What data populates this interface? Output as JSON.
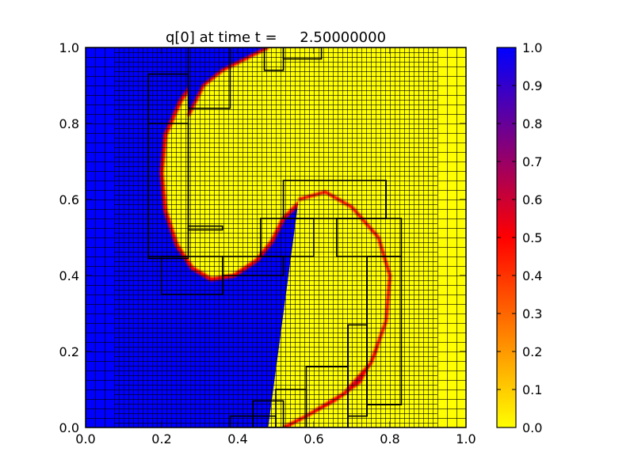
{
  "chart_data": {
    "type": "heatmap",
    "title": "q[0] at time t =     2.50000000",
    "variable": "q[0]",
    "time": 2.5,
    "xlabel": "",
    "ylabel": "",
    "xlim": [
      0.0,
      1.0
    ],
    "ylim": [
      0.0,
      1.0
    ],
    "x_ticks": [
      "0.0",
      "0.2",
      "0.4",
      "0.6",
      "0.8",
      "1.0"
    ],
    "y_ticks": [
      "0.0",
      "0.2",
      "0.4",
      "0.6",
      "0.8",
      "1.0"
    ],
    "colorbar": {
      "range": [
        0.0,
        1.0
      ],
      "ticks": [
        "0.0",
        "0.1",
        "0.2",
        "0.3",
        "0.4",
        "0.5",
        "0.6",
        "0.7",
        "0.8",
        "0.9",
        "1.0"
      ],
      "colormap": [
        "#ffff00",
        "#ff0000",
        "#0000ff"
      ]
    },
    "colors": {
      "high": "#0000ff",
      "low": "#ffff00",
      "interface": "#ff0000",
      "grid": "#000000"
    },
    "field_description": "Swirling interface between q=1 (blue, left/center) and q=0 (yellow, right) on an adaptive mesh",
    "interface_curve": [
      [
        0.52,
        0.0
      ],
      [
        0.57,
        0.03
      ],
      [
        0.65,
        0.07
      ],
      [
        0.72,
        0.12
      ],
      [
        0.76,
        0.2
      ],
      [
        0.78,
        0.3
      ],
      [
        0.77,
        0.4
      ],
      [
        0.73,
        0.5
      ],
      [
        0.68,
        0.57
      ],
      [
        0.62,
        0.6
      ],
      [
        0.56,
        0.59
      ],
      [
        0.52,
        0.55
      ],
      [
        0.49,
        0.49
      ],
      [
        0.45,
        0.44
      ],
      [
        0.39,
        0.4
      ],
      [
        0.33,
        0.39
      ],
      [
        0.28,
        0.42
      ],
      [
        0.24,
        0.48
      ],
      [
        0.21,
        0.57
      ],
      [
        0.2,
        0.67
      ],
      [
        0.21,
        0.77
      ],
      [
        0.25,
        0.86
      ],
      [
        0.3,
        0.93
      ],
      [
        0.37,
        0.97
      ],
      [
        0.45,
        1.0
      ]
    ],
    "upper_band_curve": [
      [
        0.27,
        0.82
      ],
      [
        0.31,
        0.9
      ],
      [
        0.36,
        0.94
      ],
      [
        0.42,
        0.97
      ],
      [
        0.48,
        1.0
      ]
    ],
    "lower_band_curve": [
      [
        0.56,
        0.6
      ],
      [
        0.63,
        0.62
      ],
      [
        0.7,
        0.58
      ],
      [
        0.77,
        0.5
      ],
      [
        0.8,
        0.4
      ],
      [
        0.79,
        0.28
      ],
      [
        0.75,
        0.17
      ],
      [
        0.68,
        0.09
      ],
      [
        0.58,
        0.03
      ],
      [
        0.52,
        0.0
      ]
    ],
    "mesh_regions": [
      {
        "level": "coarse-blue",
        "x": [
          0.0,
          0.075
        ],
        "y": [
          0.0,
          1.0
        ],
        "cell": 0.025
      },
      {
        "level": "fine",
        "x": [
          0.075,
          0.925
        ],
        "y": [
          0.0,
          1.0
        ],
        "cell": 0.0125
      },
      {
        "level": "coarse-yellow",
        "x": [
          0.925,
          1.0
        ],
        "y": [
          0.0,
          1.0
        ],
        "cell": 0.025
      }
    ],
    "patches": [
      [
        0.165,
        0.445,
        0.27,
        0.93
      ],
      [
        0.165,
        0.45,
        0.27,
        0.8
      ],
      [
        0.2,
        0.35,
        0.36,
        0.45
      ],
      [
        0.27,
        0.84,
        0.38,
        1.0
      ],
      [
        0.27,
        0.52,
        0.36,
        0.53
      ],
      [
        0.36,
        0.4,
        0.52,
        0.45
      ],
      [
        0.38,
        0.0,
        0.5,
        0.03
      ],
      [
        0.44,
        0.0,
        0.52,
        0.07
      ],
      [
        0.5,
        0.0,
        0.58,
        0.1
      ],
      [
        0.58,
        0.0,
        0.69,
        0.16
      ],
      [
        0.69,
        0.03,
        0.74,
        0.27
      ],
      [
        0.74,
        0.06,
        0.83,
        0.45
      ],
      [
        0.66,
        0.45,
        0.83,
        0.55
      ],
      [
        0.46,
        0.45,
        0.6,
        0.55
      ],
      [
        0.52,
        0.55,
        0.79,
        0.65
      ],
      [
        0.52,
        0.97,
        0.62,
        1.0
      ],
      [
        0.47,
        0.94,
        0.52,
        1.0
      ]
    ]
  }
}
